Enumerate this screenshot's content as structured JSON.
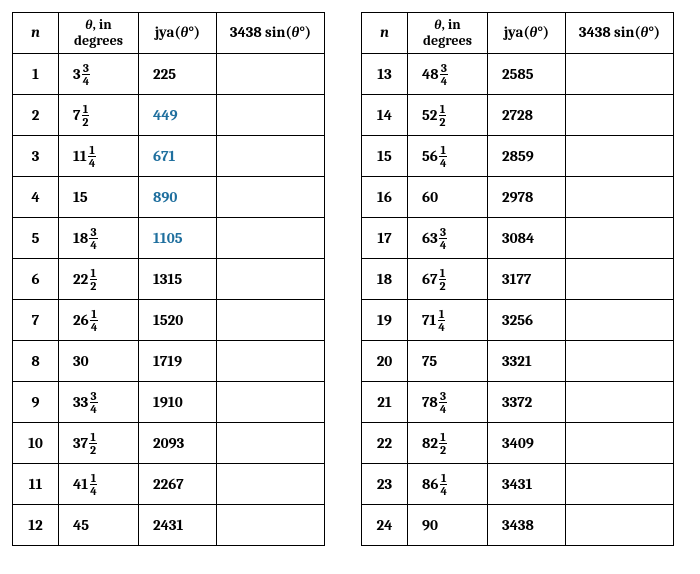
{
  "headers": {
    "n": "n",
    "theta_line1_prefix": "θ",
    "theta_line1_suffix": ", in",
    "theta_line2": "degrees",
    "jya_prefix": "jya(",
    "jya_theta": "θ",
    "jya_suffix": "°)",
    "sin_prefix": "3438 sin(",
    "sin_theta": "θ",
    "sin_suffix": "°)"
  },
  "highlight_color": "#1f6f9e",
  "rows_left": [
    {
      "n": "1",
      "whole": "3",
      "num": "3",
      "den": "4",
      "jya": "225",
      "sin": "",
      "hl": false
    },
    {
      "n": "2",
      "whole": "7",
      "num": "1",
      "den": "2",
      "jya": "449",
      "sin": "",
      "hl": true
    },
    {
      "n": "3",
      "whole": "11",
      "num": "1",
      "den": "4",
      "jya": "671",
      "sin": "",
      "hl": true
    },
    {
      "n": "4",
      "whole": "15",
      "num": "",
      "den": "",
      "jya": "890",
      "sin": "",
      "hl": true
    },
    {
      "n": "5",
      "whole": "18",
      "num": "3",
      "den": "4",
      "jya": "1105",
      "sin": "",
      "hl": true
    },
    {
      "n": "6",
      "whole": "22",
      "num": "1",
      "den": "2",
      "jya": "1315",
      "sin": "",
      "hl": false
    },
    {
      "n": "7",
      "whole": "26",
      "num": "1",
      "den": "4",
      "jya": "1520",
      "sin": "",
      "hl": false
    },
    {
      "n": "8",
      "whole": "30",
      "num": "",
      "den": "",
      "jya": "1719",
      "sin": "",
      "hl": false
    },
    {
      "n": "9",
      "whole": "33",
      "num": "3",
      "den": "4",
      "jya": "1910",
      "sin": "",
      "hl": false
    },
    {
      "n": "10",
      "whole": "37",
      "num": "1",
      "den": "2",
      "jya": "2093",
      "sin": "",
      "hl": false
    },
    {
      "n": "11",
      "whole": "41",
      "num": "1",
      "den": "4",
      "jya": "2267",
      "sin": "",
      "hl": false
    },
    {
      "n": "12",
      "whole": "45",
      "num": "",
      "den": "",
      "jya": "2431",
      "sin": "",
      "hl": false
    }
  ],
  "rows_right": [
    {
      "n": "13",
      "whole": "48",
      "num": "3",
      "den": "4",
      "jya": "2585",
      "sin": "",
      "hl": false
    },
    {
      "n": "14",
      "whole": "52",
      "num": "1",
      "den": "2",
      "jya": "2728",
      "sin": "",
      "hl": false
    },
    {
      "n": "15",
      "whole": "56",
      "num": "1",
      "den": "4",
      "jya": "2859",
      "sin": "",
      "hl": false
    },
    {
      "n": "16",
      "whole": "60",
      "num": "",
      "den": "",
      "jya": "2978",
      "sin": "",
      "hl": false
    },
    {
      "n": "17",
      "whole": "63",
      "num": "3",
      "den": "4",
      "jya": "3084",
      "sin": "",
      "hl": false
    },
    {
      "n": "18",
      "whole": "67",
      "num": "1",
      "den": "2",
      "jya": "3177",
      "sin": "",
      "hl": false
    },
    {
      "n": "19",
      "whole": "71",
      "num": "1",
      "den": "4",
      "jya": "3256",
      "sin": "",
      "hl": false
    },
    {
      "n": "20",
      "whole": "75",
      "num": "",
      "den": "",
      "jya": "3321",
      "sin": "",
      "hl": false
    },
    {
      "n": "21",
      "whole": "78",
      "num": "3",
      "den": "4",
      "jya": "3372",
      "sin": "",
      "hl": false
    },
    {
      "n": "22",
      "whole": "82",
      "num": "1",
      "den": "2",
      "jya": "3409",
      "sin": "",
      "hl": false
    },
    {
      "n": "23",
      "whole": "86",
      "num": "1",
      "den": "4",
      "jya": "3431",
      "sin": "",
      "hl": false
    },
    {
      "n": "24",
      "whole": "90",
      "num": "",
      "den": "",
      "jya": "3438",
      "sin": "",
      "hl": false
    }
  ]
}
